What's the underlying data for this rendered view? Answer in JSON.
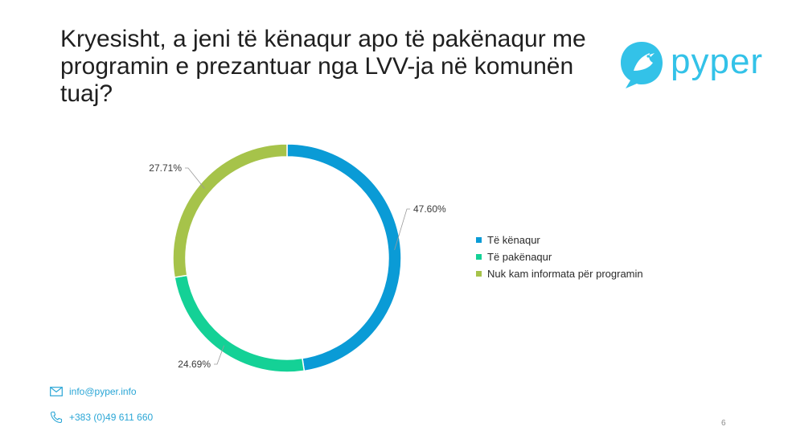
{
  "title": "Kryesisht, a jeni të kënaqur apo të pakënaqur me programin e prezantuar nga LVV-ja në komunën tuaj?",
  "logo": {
    "text": "pyper",
    "icon": "bird-icon",
    "color": "#33c2e8"
  },
  "contact": {
    "email": "info@pyper.info",
    "phone": "+383 (0)49 611 660"
  },
  "page_number": "6",
  "chart_data": {
    "type": "pie",
    "donut": true,
    "series": [
      {
        "name": "Të kënaqur",
        "value": 47.6,
        "label": "47.60%",
        "color": "#0a9bd6"
      },
      {
        "name": "Të pakënaqur",
        "value": 24.69,
        "label": "24.69%",
        "color": "#14d196"
      },
      {
        "name": "Nuk kam informata për programin",
        "value": 27.71,
        "label": "27.71%",
        "color": "#a6c34a"
      }
    ],
    "legend_position": "right"
  }
}
